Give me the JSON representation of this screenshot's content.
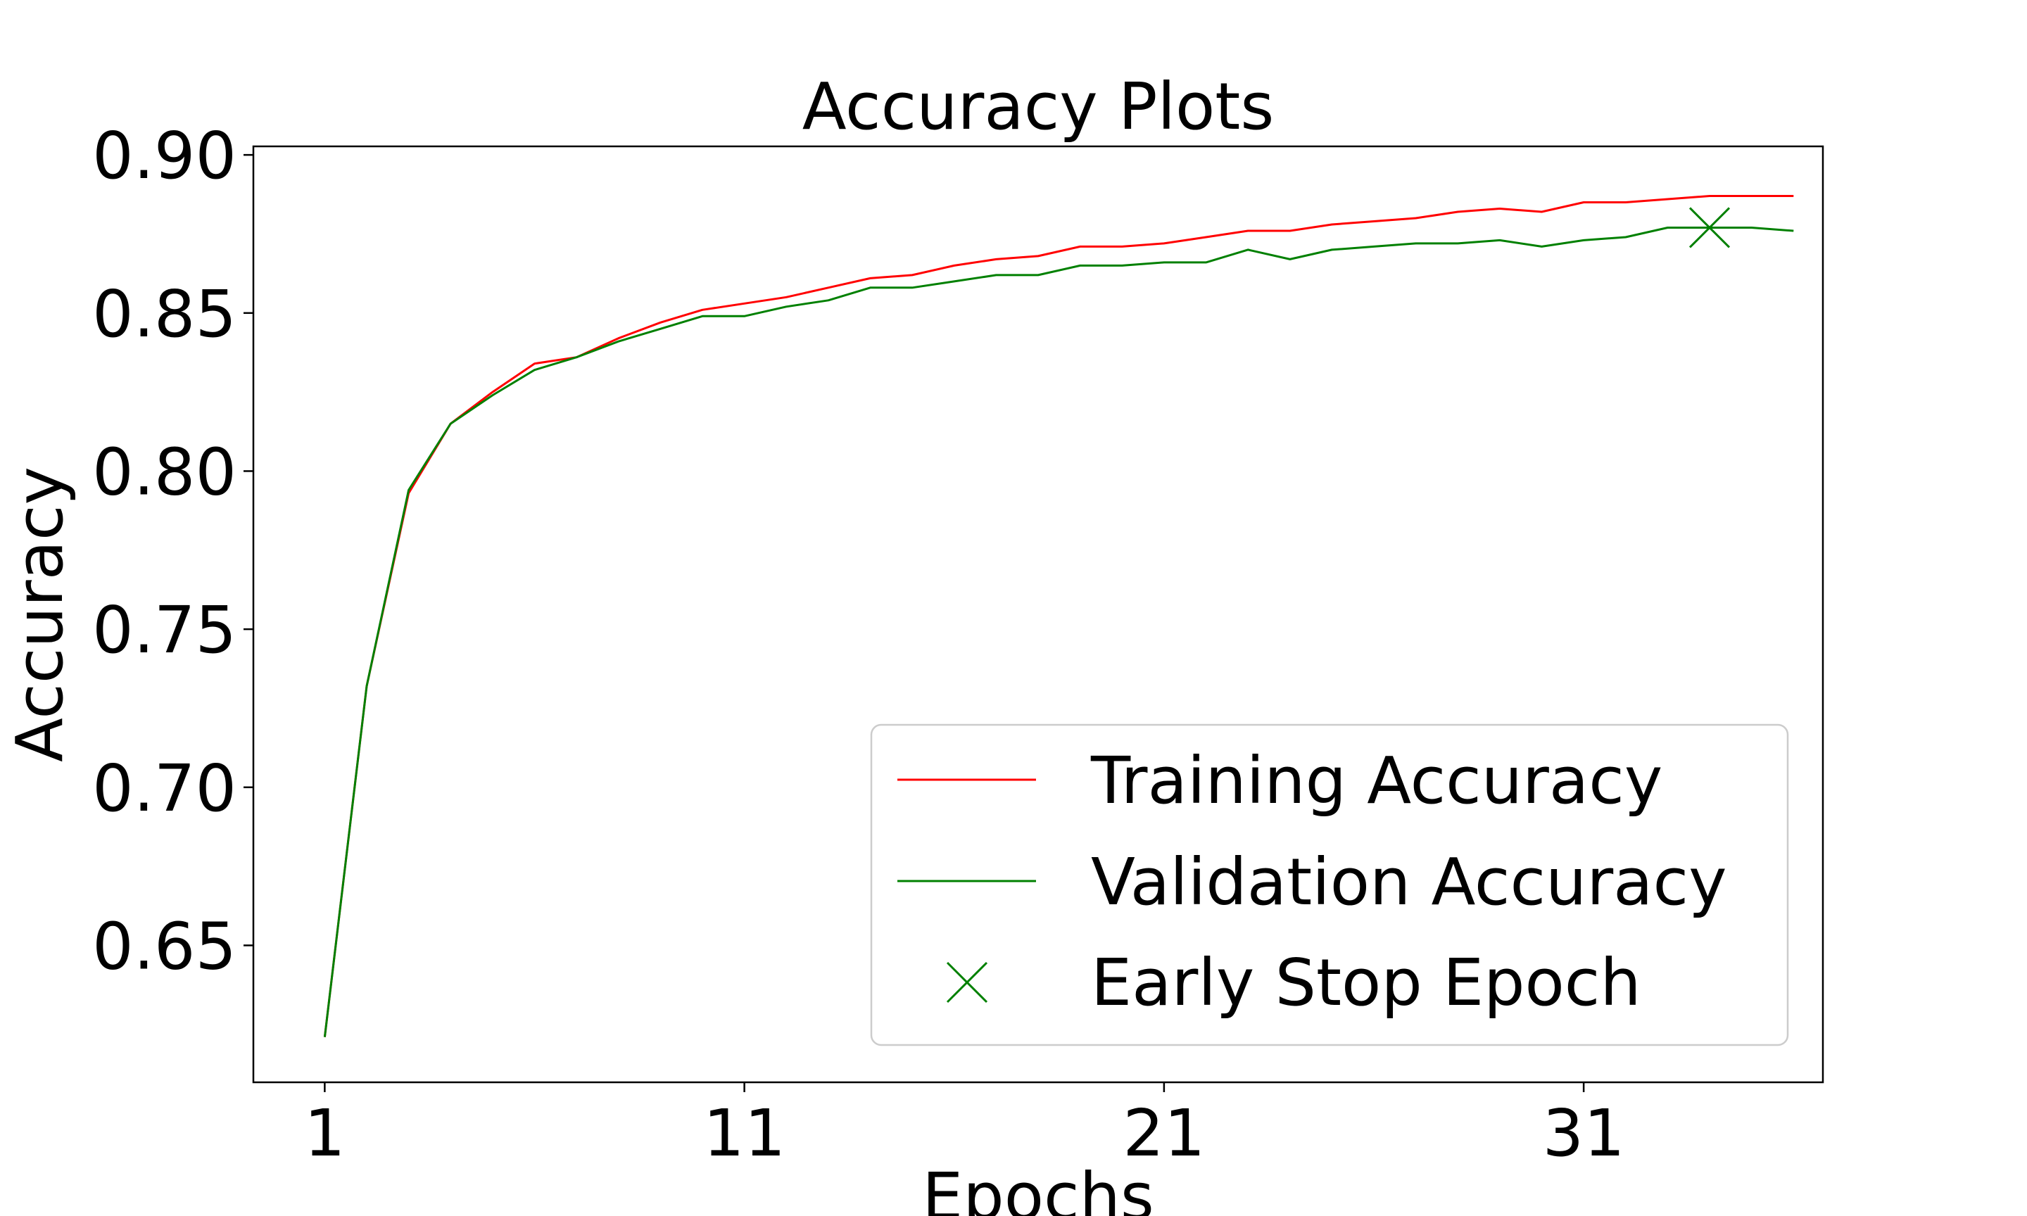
{
  "chart_data": {
    "type": "line",
    "title": "Accuracy Plots",
    "xlabel": "Epochs",
    "ylabel": "Accuracy",
    "xlim": [
      -0.7,
      36.7
    ],
    "ylim": [
      0.6067,
      0.9027
    ],
    "x_ticks": [
      1,
      11,
      21,
      31
    ],
    "y_ticks": [
      0.65,
      0.7,
      0.75,
      0.8,
      0.85,
      0.9
    ],
    "y_tick_labels": [
      "0.65",
      "0.70",
      "0.75",
      "0.80",
      "0.85",
      "0.90"
    ],
    "grid": false,
    "legend_position": "lower right",
    "x": [
      1,
      2,
      3,
      4,
      5,
      6,
      7,
      8,
      9,
      10,
      11,
      12,
      13,
      14,
      15,
      16,
      17,
      18,
      19,
      20,
      21,
      22,
      23,
      24,
      25,
      26,
      27,
      28,
      29,
      30,
      31,
      32,
      33,
      34,
      35,
      36
    ],
    "series": [
      {
        "name": "Training Accuracy",
        "color": "#ff0000",
        "values": [
          0.621,
          0.732,
          0.793,
          0.815,
          0.825,
          0.834,
          0.836,
          0.842,
          0.847,
          0.851,
          0.853,
          0.855,
          0.858,
          0.861,
          0.862,
          0.865,
          0.867,
          0.868,
          0.871,
          0.871,
          0.872,
          0.874,
          0.876,
          0.876,
          0.878,
          0.879,
          0.88,
          0.882,
          0.883,
          0.882,
          0.885,
          0.885,
          0.886,
          0.887,
          0.887,
          0.887
        ]
      },
      {
        "name": "Validation Accuracy",
        "color": "#008000",
        "values": [
          0.621,
          0.732,
          0.794,
          0.815,
          0.824,
          0.832,
          0.836,
          0.841,
          0.845,
          0.849,
          0.849,
          0.852,
          0.854,
          0.858,
          0.858,
          0.86,
          0.862,
          0.862,
          0.865,
          0.865,
          0.866,
          0.866,
          0.87,
          0.867,
          0.87,
          0.871,
          0.872,
          0.872,
          0.873,
          0.871,
          0.873,
          0.874,
          0.877,
          0.877,
          0.877,
          0.876
        ]
      }
    ],
    "early_stop": {
      "name": "Early Stop Epoch",
      "color": "#008000",
      "x": 34,
      "y": 0.877
    }
  }
}
